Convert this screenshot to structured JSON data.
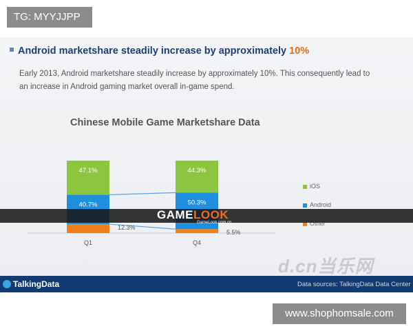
{
  "badges": {
    "tg": "TG: MYYJJPP",
    "site": "www.shophomsale.com"
  },
  "slide": {
    "headline_text": "Android marketshare steadily increase by approximately ",
    "headline_pct": "10%",
    "body": "Early 2013, Android marketshare steadily increase by approximately 10%. This consequently lead to an increase in Android gaming market overall in-game spend."
  },
  "watermark": {
    "logo_prefix": "GAME",
    "logo_suffix": "LOOK",
    "sub": "GameLook.com.cn",
    "dcn": "d.cn当乐网"
  },
  "footer": {
    "logo": "TalkingData",
    "source": "Data sources: TalkingData Data Center"
  },
  "colors": {
    "ios": "#8cc63f",
    "android": "#1e8ee0",
    "other": "#f07f1c",
    "headline": "#1f3f7a",
    "accent": "#e26b1c",
    "footer": "#123a73"
  },
  "chart_data": {
    "type": "bar",
    "stacked": true,
    "title": "Chinese Mobile Game Marketshare Data",
    "categories": [
      "Q1",
      "Q4"
    ],
    "series": [
      {
        "name": "iOS",
        "values": [
          47.1,
          44.3
        ],
        "labels": [
          "47.1%",
          "44.3%"
        ]
      },
      {
        "name": "Android",
        "values": [
          40.7,
          50.3
        ],
        "labels": [
          "40.7%",
          "50.3%"
        ]
      },
      {
        "name": "Other",
        "values": [
          12.3,
          5.5
        ],
        "labels": [
          "12.3%",
          "5.5%"
        ]
      }
    ],
    "legend_position": "right",
    "ylim": [
      0,
      100
    ]
  }
}
